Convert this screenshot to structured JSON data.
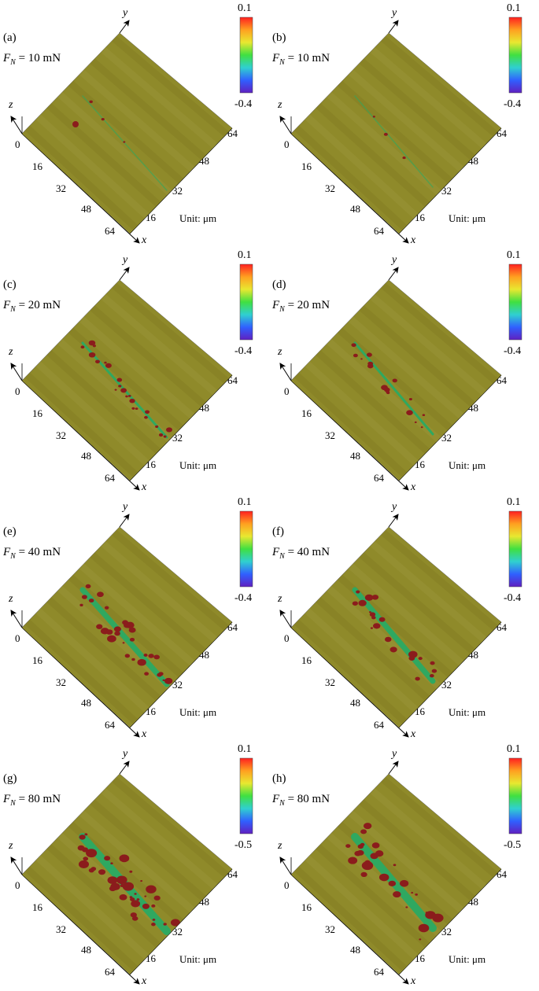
{
  "figure": {
    "unit_label": "Unit: μm",
    "axis_names": {
      "x": "x",
      "y": "y",
      "z": "z"
    },
    "x_ticks": [
      "16",
      "32",
      "48",
      "64"
    ],
    "y_ticks": [
      "16",
      "32",
      "48",
      "64"
    ],
    "z_ticks": [
      "0"
    ],
    "surface_color": "#8f8a2a",
    "scratch_color": "#2fa860",
    "wear_color": "#8b1c1c",
    "colorbar_colors": [
      "#ff2020",
      "#ffa020",
      "#e8e830",
      "#40e040",
      "#30d0d0",
      "#3060ff",
      "#6020c0"
    ],
    "panels": [
      {
        "label": "(a)",
        "load": "10 mN",
        "cb_max": "0.1",
        "cb_min": "-0.4",
        "level": 0
      },
      {
        "label": "(b)",
        "load": "10 mN",
        "cb_max": "0.1",
        "cb_min": "-0.4",
        "level": 0
      },
      {
        "label": "(c)",
        "load": "20 mN",
        "cb_max": "0.1",
        "cb_min": "-0.4",
        "level": 1
      },
      {
        "label": "(d)",
        "load": "20 mN",
        "cb_max": "0.1",
        "cb_min": "-0.4",
        "level": 1
      },
      {
        "label": "(e)",
        "load": "40 mN",
        "cb_max": "0.1",
        "cb_min": "-0.4",
        "level": 2
      },
      {
        "label": "(f)",
        "load": "40 mN",
        "cb_max": "0.1",
        "cb_min": "-0.4",
        "level": 2
      },
      {
        "label": "(g)",
        "load": "80 mN",
        "cb_max": "0.1",
        "cb_min": "-0.5",
        "level": 3
      },
      {
        "label": "(h)",
        "load": "80 mN",
        "cb_max": "0.1",
        "cb_min": "-0.5",
        "level": 3
      }
    ]
  }
}
